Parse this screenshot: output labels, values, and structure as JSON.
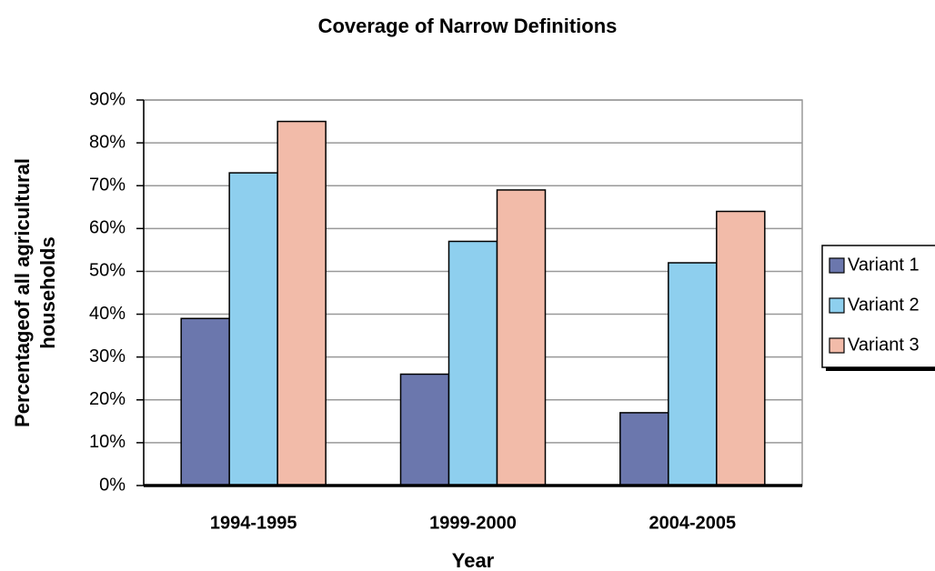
{
  "chart_data": {
    "type": "bar",
    "title": "Coverage of Narrow Definitions",
    "xlabel": "Year",
    "ylabel": [
      "Percentageof all agricultural",
      "households"
    ],
    "categories": [
      "1994-1995",
      "1999-2000",
      "2004-2005"
    ],
    "series": [
      {
        "name": "Variant 1",
        "color": "#6b77ad",
        "values": [
          39,
          26,
          17
        ]
      },
      {
        "name": "Variant 2",
        "color": "#8ecfee",
        "values": [
          73,
          57,
          52
        ]
      },
      {
        "name": "Variant 3",
        "color": "#f2bba9",
        "values": [
          85,
          69,
          64
        ]
      }
    ],
    "ylim": [
      0,
      90
    ],
    "yticks": [
      {
        "value": 0,
        "label": "0%"
      },
      {
        "value": 10,
        "label": "10%"
      },
      {
        "value": 20,
        "label": "20%"
      },
      {
        "value": 30,
        "label": "30%"
      },
      {
        "value": 40,
        "label": "40%"
      },
      {
        "value": 50,
        "label": "50%"
      },
      {
        "value": 60,
        "label": "60%"
      },
      {
        "value": 70,
        "label": "70%"
      },
      {
        "value": 80,
        "label": "80%"
      },
      {
        "value": 90,
        "label": "90%"
      }
    ],
    "grid": true,
    "legend": "right"
  }
}
